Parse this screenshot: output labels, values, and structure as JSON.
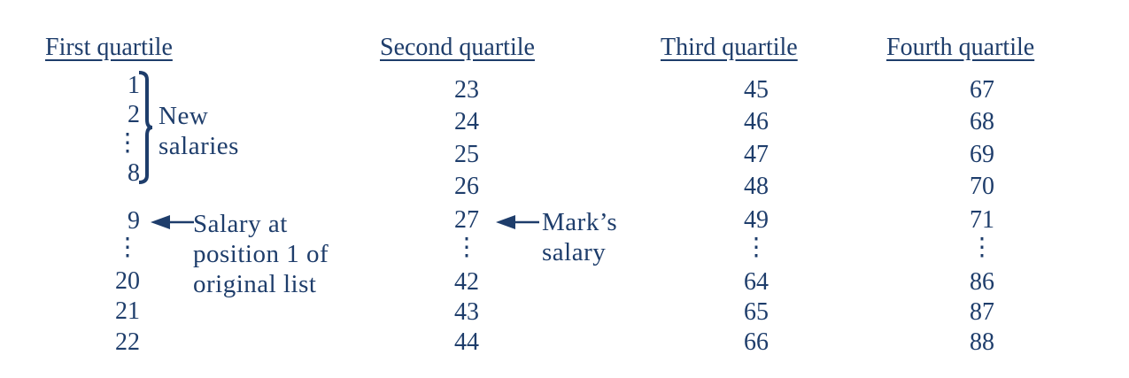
{
  "colors": {
    "text": "#1e3d6b"
  },
  "headers": [
    "First quartile",
    "Second quartile",
    "Third quartile",
    "Fourth quartile"
  ],
  "columns": [
    [
      "1",
      "2",
      "⋮",
      "8",
      "9",
      "⋮",
      "20",
      "21",
      "22"
    ],
    [
      "23",
      "24",
      "25",
      "26",
      "27",
      "⋮",
      "42",
      "43",
      "44"
    ],
    [
      "45",
      "46",
      "47",
      "48",
      "49",
      "⋮",
      "64",
      "65",
      "66"
    ],
    [
      "67",
      "68",
      "69",
      "70",
      "71",
      "⋮",
      "86",
      "87",
      "88"
    ]
  ],
  "annotations": {
    "new_salaries": [
      "New",
      "salaries"
    ],
    "position_one": [
      "Salary at",
      "position 1 of",
      "original list"
    ],
    "marks_salary": [
      "Mark’s",
      "salary"
    ]
  }
}
